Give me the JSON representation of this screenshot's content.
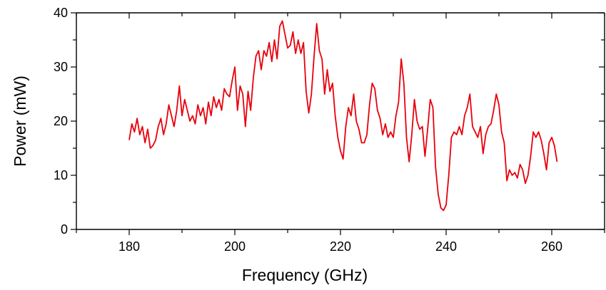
{
  "chart_data": {
    "type": "line",
    "title": "",
    "xlabel": "Frequency (GHz)",
    "ylabel": "Power (mW)",
    "xlim": [
      170,
      270
    ],
    "ylim": [
      0,
      40
    ],
    "x_ticks": [
      "180",
      "200",
      "220",
      "240",
      "260"
    ],
    "y_ticks": [
      "0",
      "10",
      "20",
      "30",
      "40"
    ],
    "x_tick_values": [
      180,
      200,
      220,
      240,
      260
    ],
    "y_tick_values": [
      0,
      10,
      20,
      30,
      40
    ],
    "grid": false,
    "legend": "none",
    "series": [
      {
        "color": "#e8000b",
        "x": [
          180.0,
          180.5,
          181.0,
          181.5,
          182.0,
          182.5,
          183.0,
          183.5,
          184.0,
          184.5,
          185.0,
          185.5,
          186.0,
          186.5,
          187.0,
          187.5,
          188.0,
          188.5,
          189.0,
          189.5,
          190.0,
          190.5,
          191.0,
          191.5,
          192.0,
          192.5,
          193.0,
          193.5,
          194.0,
          194.5,
          195.0,
          195.5,
          196.0,
          196.5,
          197.0,
          197.5,
          198.0,
          198.5,
          199.0,
          199.5,
          200.0,
          200.5,
          201.0,
          201.5,
          202.0,
          202.5,
          203.0,
          203.5,
          204.0,
          204.5,
          205.0,
          205.5,
          206.0,
          206.5,
          207.0,
          207.5,
          208.0,
          208.5,
          209.0,
          209.5,
          210.0,
          210.5,
          211.0,
          211.5,
          212.0,
          212.5,
          213.0,
          213.5,
          214.0,
          214.5,
          215.0,
          215.5,
          216.0,
          216.5,
          217.0,
          217.5,
          218.0,
          218.5,
          219.0,
          219.5,
          220.0,
          220.5,
          221.0,
          221.5,
          222.0,
          222.5,
          223.0,
          223.5,
          224.0,
          224.5,
          225.0,
          225.5,
          226.0,
          226.5,
          227.0,
          227.5,
          228.0,
          228.5,
          229.0,
          229.5,
          230.0,
          230.5,
          231.0,
          231.5,
          232.0,
          232.5,
          233.0,
          233.5,
          234.0,
          234.5,
          235.0,
          235.5,
          236.0,
          236.5,
          237.0,
          237.5,
          238.0,
          238.5,
          239.0,
          239.5,
          240.0,
          240.5,
          241.0,
          241.5,
          242.0,
          242.5,
          243.0,
          243.5,
          244.0,
          244.5,
          245.0,
          245.5,
          246.0,
          246.5,
          247.0,
          247.5,
          248.0,
          248.5,
          249.0,
          249.5,
          250.0,
          250.5,
          251.0,
          251.5,
          252.0,
          252.5,
          253.0,
          253.5,
          254.0,
          254.5,
          255.0,
          255.5,
          256.0,
          256.5,
          257.0,
          257.5,
          258.0,
          258.5,
          259.0,
          259.5,
          260.0,
          260.5,
          261.0
        ],
        "y": [
          16.5,
          19.5,
          18.0,
          20.5,
          17.5,
          19.0,
          16.0,
          18.5,
          15.0,
          15.5,
          16.5,
          19.0,
          20.5,
          17.5,
          19.5,
          23.0,
          21.0,
          19.0,
          22.0,
          26.5,
          21.0,
          24.0,
          22.0,
          20.0,
          21.0,
          19.5,
          23.0,
          21.0,
          22.5,
          19.5,
          23.5,
          21.0,
          24.5,
          22.5,
          24.0,
          22.0,
          26.0,
          25.0,
          24.5,
          27.5,
          30.0,
          22.0,
          26.5,
          25.0,
          19.0,
          25.5,
          22.0,
          28.0,
          32.0,
          33.0,
          29.5,
          33.0,
          32.0,
          34.5,
          31.0,
          35.0,
          31.5,
          37.5,
          38.5,
          36.0,
          33.5,
          34.0,
          36.5,
          32.5,
          35.0,
          32.5,
          34.5,
          25.5,
          21.5,
          25.0,
          32.0,
          38.0,
          33.0,
          31.5,
          25.0,
          29.5,
          25.5,
          27.0,
          21.0,
          17.0,
          14.5,
          13.0,
          19.0,
          22.5,
          21.0,
          25.0,
          20.0,
          18.5,
          16.0,
          16.0,
          17.5,
          23.0,
          27.0,
          26.0,
          22.0,
          20.5,
          17.5,
          19.5,
          17.0,
          18.0,
          17.0,
          21.0,
          23.5,
          31.5,
          27.0,
          17.0,
          12.5,
          17.5,
          24.0,
          20.0,
          18.5,
          19.0,
          13.5,
          18.5,
          24.0,
          22.5,
          11.5,
          6.5,
          4.0,
          3.5,
          4.5,
          10.0,
          17.0,
          18.0,
          17.5,
          19.0,
          17.5,
          21.0,
          22.5,
          25.0,
          19.0,
          18.0,
          17.0,
          19.0,
          14.0,
          17.5,
          19.0,
          19.5,
          22.0,
          25.0,
          23.0,
          18.0,
          16.0,
          9.0,
          11.0,
          10.0,
          10.5,
          9.5,
          12.0,
          11.0,
          8.5,
          10.0,
          13.5,
          18.0,
          17.0,
          18.0,
          16.5,
          14.0,
          11.0,
          16.0,
          17.0,
          15.5,
          12.5
        ]
      }
    ]
  }
}
